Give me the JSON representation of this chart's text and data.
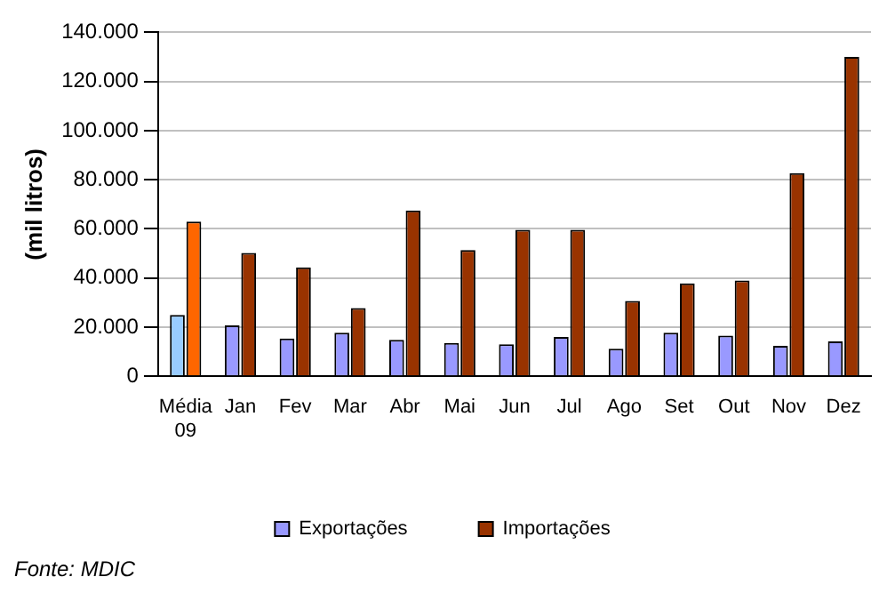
{
  "chart_data": {
    "type": "bar",
    "ylabel": "(mil litros)",
    "categories": [
      "Média 09",
      "Jan",
      "Fev",
      "Mar",
      "Abr",
      "Mai",
      "Jun",
      "Jul",
      "Ago",
      "Set",
      "Out",
      "Nov",
      "Dez"
    ],
    "series": [
      {
        "name": "Exportações",
        "color": "#9999ff",
        "colors": [
          "#99ccff",
          "#9999ff",
          "#9999ff",
          "#9999ff",
          "#9999ff",
          "#9999ff",
          "#9999ff",
          "#9999ff",
          "#9999ff",
          "#9999ff",
          "#9999ff",
          "#9999ff",
          "#9999ff"
        ],
        "values": [
          25000,
          20700,
          15400,
          17700,
          14800,
          13600,
          13000,
          16000,
          11200,
          17700,
          16500,
          12400,
          14200
        ]
      },
      {
        "name": "Importações",
        "color": "#993300",
        "colors": [
          "#ff6600",
          "#993300",
          "#993300",
          "#993300",
          "#993300",
          "#993300",
          "#993300",
          "#993300",
          "#993300",
          "#993300",
          "#993300",
          "#993300",
          "#993300"
        ],
        "values": [
          63000,
          50200,
          44300,
          27800,
          67500,
          51400,
          59600,
          59600,
          30700,
          37800,
          39000,
          82700,
          130000
        ]
      }
    ],
    "ylim": [
      0,
      140000
    ],
    "yticks": [
      {
        "value": 0,
        "label": "0"
      },
      {
        "value": 20000,
        "label": "20.000"
      },
      {
        "value": 40000,
        "label": "40.000"
      },
      {
        "value": 60000,
        "label": "60.000"
      },
      {
        "value": 80000,
        "label": "80.000"
      },
      {
        "value": 100000,
        "label": "100.000"
      },
      {
        "value": 120000,
        "label": "120.000"
      },
      {
        "value": 140000,
        "label": "140.000"
      }
    ],
    "grid": "y",
    "legend": "bottom",
    "annotations": [
      "Fonte: MDIC"
    ]
  }
}
